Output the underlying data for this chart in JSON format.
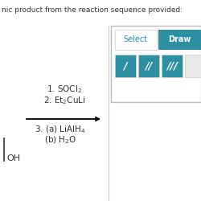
{
  "title_text": "nic product from the reaction sequence provided:",
  "step1_text": "1. SOCl$_2$",
  "step2_text": "2. Et$_2$CuLi",
  "step3a_text": "3. (a) LiAlH$_4$",
  "step3b_text": "(b) H$_2$O",
  "select_label": "Select",
  "draw_label": "Draw",
  "teal_color": "#2e8fa3",
  "light_teal": "#4aafc0",
  "bg_color": "#ffffff",
  "text_color": "#333333",
  "title_color": "#333333",
  "border_color": "#cccccc",
  "panel_border": "#bbbbbb"
}
